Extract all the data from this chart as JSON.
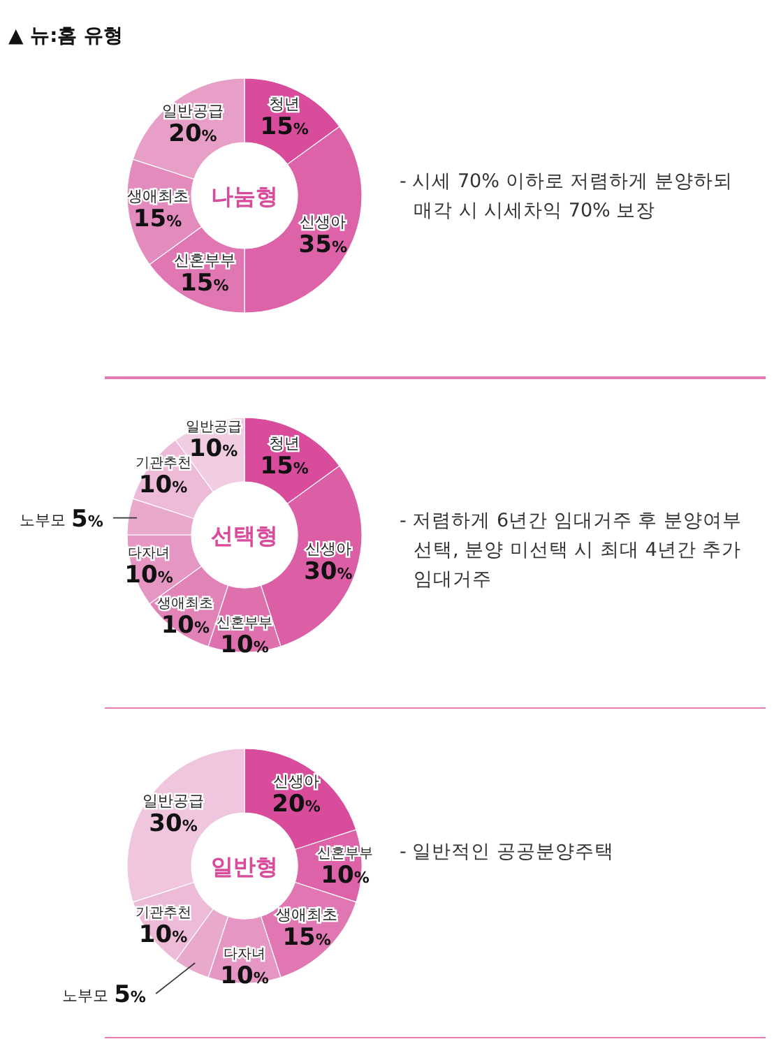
{
  "chart_data": [
    {
      "type": "other",
      "title": "▲ 뉴:홈 유형"
    },
    {
      "type": "donut",
      "title": "나눔형",
      "categories": [
        "청년",
        "신생아",
        "신혼부부",
        "생애최초",
        "일반공급"
      ],
      "values": [
        15,
        35,
        15,
        15,
        20
      ],
      "value_labels": [
        "15%",
        "35%",
        "15%",
        "15%",
        "20%"
      ],
      "colors": [
        "#d94c9c",
        "#dd62a7",
        "#e077b2",
        "#e38bbc",
        "#e89fc7"
      ],
      "annotations": [
        "- 시세 70% 이하로 저렴하게 분양하되 매각 시 시세차익 70% 보장"
      ]
    },
    {
      "type": "donut",
      "title": "선택형",
      "categories": [
        "청년",
        "신생아",
        "신혼부부",
        "생애최초",
        "다자녀",
        "노부모",
        "기관추천",
        "일반공급"
      ],
      "values": [
        15,
        30,
        10,
        10,
        10,
        5,
        10,
        10
      ],
      "value_labels": [
        "15%",
        "30%",
        "10%",
        "10%",
        "10%",
        "5%",
        "10%",
        "10%"
      ],
      "colors": [
        "#d94c9c",
        "#dc5ea5",
        "#df70ae",
        "#e283b8",
        "#e596c2",
        "#e9a9cc",
        "#edbbd7",
        "#f1cde2"
      ],
      "annotations": [
        "- 저렴하게 6년간 임대거주 후 분양여부 선택, 분양 미선택 시 최대 4년간 추가 임대거주"
      ]
    },
    {
      "type": "donut",
      "title": "일반형",
      "categories": [
        "신생아",
        "신혼부부",
        "생애최초",
        "다자녀",
        "노부모",
        "기관추천",
        "일반공급"
      ],
      "values": [
        20,
        10,
        15,
        10,
        5,
        10,
        30
      ],
      "value_labels": [
        "20%",
        "10%",
        "15%",
        "10%",
        "5%",
        "10%",
        "30%"
      ],
      "colors": [
        "#d94c9c",
        "#dd62a7",
        "#e077b2",
        "#e596c2",
        "#e9a9cc",
        "#edbbd7",
        "#efc6dd"
      ],
      "annotations": [
        "- 일반적인 공공분양주택"
      ]
    }
  ]
}
